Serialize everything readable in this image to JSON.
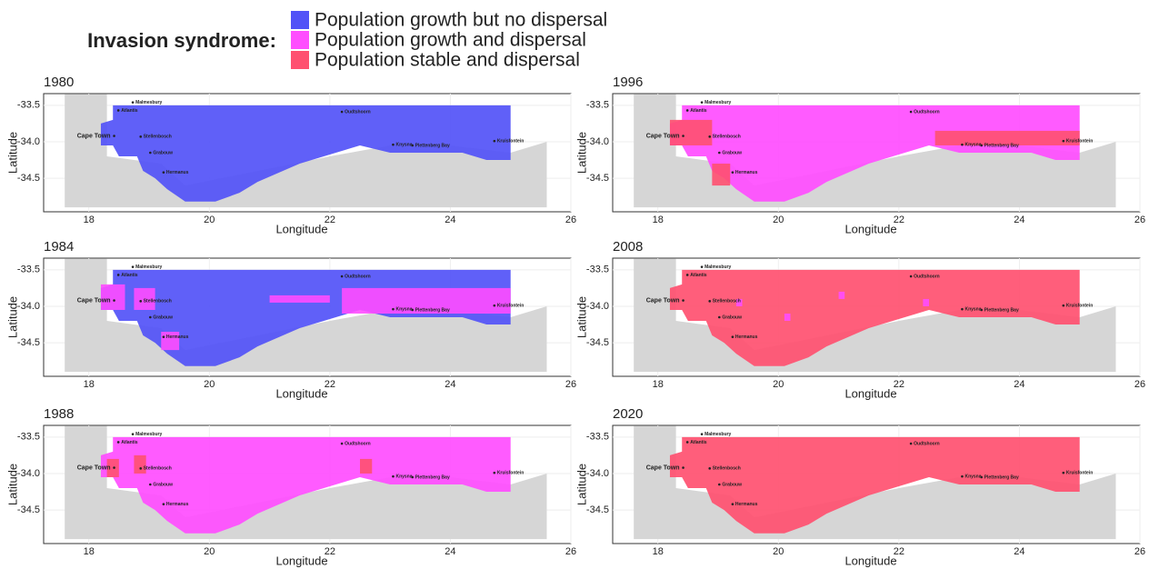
{
  "legend": {
    "title": "Invasion syndrome:",
    "items": [
      {
        "label": "Population growth but no dispersal",
        "color": "#5252f7"
      },
      {
        "label": "Population growth and dispersal",
        "color": "#ff4dff"
      },
      {
        "label": "Population stable and dispersal",
        "color": "#ff5070"
      }
    ]
  },
  "panels": [
    {
      "title": "1980",
      "syndrome": 0
    },
    {
      "title": "1996",
      "syndrome": 1
    },
    {
      "title": "1984",
      "syndrome": 0
    },
    {
      "title": "2008",
      "syndrome": 2
    },
    {
      "title": "1988",
      "syndrome": 1
    },
    {
      "title": "2020",
      "syndrome": 2
    }
  ],
  "axes": {
    "xlabel": "Longitude",
    "ylabel": "Latitude",
    "xlim": [
      17.25,
      26
    ],
    "ylim": [
      -34.96,
      -33.34
    ],
    "xticks": [
      18,
      20,
      22,
      24,
      26
    ],
    "yticks": [
      -33.5,
      {
        "value": -34,
        "label": "-34.0"
      },
      -34.5
    ]
  },
  "towns": [
    {
      "name": "Malmesbury",
      "lon": 18.73,
      "lat": -33.46
    },
    {
      "name": "Atlantis",
      "lon": 18.49,
      "lat": -33.57
    },
    {
      "name": "Cape Town",
      "lon": 18.42,
      "lat": -33.92
    },
    {
      "name": "Stellenbosch",
      "lon": 18.86,
      "lat": -33.93
    },
    {
      "name": "Grabouw",
      "lon": 19.02,
      "lat": -34.15
    },
    {
      "name": "Hermanus",
      "lon": 19.24,
      "lat": -34.42
    },
    {
      "name": "Oudtshoorn",
      "lon": 22.2,
      "lat": -33.59
    },
    {
      "name": "Knysna",
      "lon": 23.05,
      "lat": -34.04
    },
    {
      "name": "Plettenberg Bay",
      "lon": 23.37,
      "lat": -34.05
    },
    {
      "name": "Kruisfontein",
      "lon": 24.73,
      "lat": -33.99
    }
  ]
}
